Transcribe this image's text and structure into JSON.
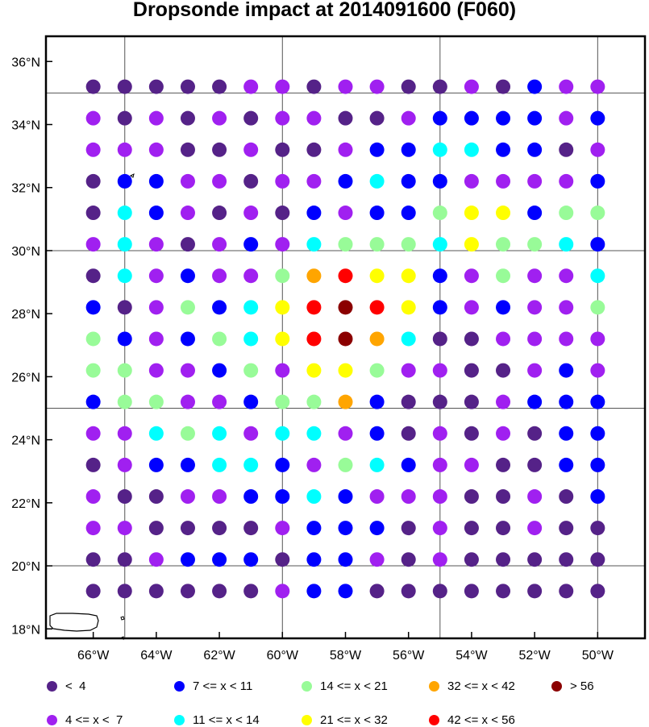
{
  "title": "Dropsonde impact at 2014091600 (F060)",
  "chart_data": {
    "type": "scatter",
    "title": "Dropsonde impact at 2014091600 (F060)",
    "xlim_lon": [
      -67.5,
      -48.5
    ],
    "ylim_lat": [
      17.7,
      36.8
    ],
    "lons": [
      -66,
      -65,
      -64,
      -63,
      -62,
      -61,
      -60,
      -59,
      -58,
      -57,
      -56,
      -55,
      -54,
      -53,
      -52,
      -51,
      -50
    ],
    "lats": [
      35.2,
      34.2,
      33.2,
      32.2,
      31.2,
      30.2,
      29.2,
      28.2,
      27.2,
      26.2,
      25.2,
      24.2,
      23.2,
      22.2,
      21.2,
      20.2,
      19.2
    ],
    "grid_lons": [
      -65,
      -60,
      -55,
      -50
    ],
    "grid_lats": [
      35,
      30,
      25,
      20
    ],
    "x_ticks": [
      {
        "lon": -66,
        "label": "66°W"
      },
      {
        "lon": -64,
        "label": "64°W"
      },
      {
        "lon": -62,
        "label": "62°W"
      },
      {
        "lon": -60,
        "label": "60°W"
      },
      {
        "lon": -58,
        "label": "58°W"
      },
      {
        "lon": -56,
        "label": "56°W"
      },
      {
        "lon": -54,
        "label": "54°W"
      },
      {
        "lon": -52,
        "label": "52°W"
      },
      {
        "lon": -50,
        "label": "50°W"
      }
    ],
    "y_ticks": [
      {
        "lat": 36,
        "label": "36°N"
      },
      {
        "lat": 34,
        "label": "34°N"
      },
      {
        "lat": 32,
        "label": "32°N"
      },
      {
        "lat": 30,
        "label": "30°N"
      },
      {
        "lat": 28,
        "label": "28°N"
      },
      {
        "lat": 26,
        "label": "26°N"
      },
      {
        "lat": 24,
        "label": "24°N"
      },
      {
        "lat": 22,
        "label": "22°N"
      },
      {
        "lat": 20,
        "label": "20°N"
      },
      {
        "lat": 18,
        "label": "18°N"
      }
    ],
    "categories": [
      {
        "id": 0,
        "label": "<  4",
        "color": "#552288"
      },
      {
        "id": 1,
        "label": "4 <= x <  7",
        "color": "#A020F0"
      },
      {
        "id": 2,
        "label": "7 <= x < 11",
        "color": "#0000FF"
      },
      {
        "id": 3,
        "label": "11 <= x < 14",
        "color": "#00FFFF"
      },
      {
        "id": 4,
        "label": "14 <= x < 21",
        "color": "#98FB98"
      },
      {
        "id": 5,
        "label": "21 <= x < 32",
        "color": "#FFFF00"
      },
      {
        "id": 6,
        "label": "32 <= x < 42",
        "color": "#FFA500"
      },
      {
        "id": 7,
        "label": "42 <= x < 56",
        "color": "#FF0000"
      },
      {
        "id": 8,
        "label": "> 56",
        "color": "#8B0000"
      }
    ],
    "grid_categories": [
      [
        0,
        0,
        0,
        0,
        0,
        1,
        1,
        0,
        1,
        1,
        0,
        0,
        1,
        0,
        2,
        1,
        1
      ],
      [
        1,
        0,
        1,
        0,
        1,
        0,
        1,
        1,
        0,
        0,
        1,
        2,
        2,
        2,
        2,
        1,
        2
      ],
      [
        1,
        1,
        1,
        0,
        0,
        1,
        0,
        0,
        1,
        2,
        2,
        3,
        3,
        2,
        2,
        0,
        1
      ],
      [
        0,
        2,
        2,
        1,
        1,
        0,
        1,
        1,
        2,
        3,
        2,
        2,
        1,
        1,
        1,
        1,
        2
      ],
      [
        0,
        3,
        2,
        1,
        0,
        1,
        0,
        2,
        1,
        2,
        2,
        4,
        5,
        5,
        2,
        4,
        4
      ],
      [
        1,
        3,
        1,
        0,
        1,
        2,
        1,
        3,
        4,
        4,
        4,
        3,
        5,
        4,
        4,
        3,
        2
      ],
      [
        0,
        3,
        1,
        2,
        1,
        1,
        4,
        6,
        7,
        5,
        5,
        2,
        1,
        4,
        1,
        1,
        3
      ],
      [
        2,
        0,
        1,
        4,
        2,
        3,
        5,
        7,
        8,
        7,
        5,
        2,
        1,
        2,
        1,
        1,
        4
      ],
      [
        4,
        2,
        1,
        2,
        4,
        3,
        5,
        7,
        8,
        6,
        3,
        0,
        0,
        1,
        1,
        1,
        1
      ],
      [
        4,
        4,
        1,
        1,
        2,
        4,
        1,
        5,
        5,
        4,
        1,
        1,
        0,
        0,
        1,
        2,
        1
      ],
      [
        2,
        4,
        4,
        1,
        1,
        2,
        4,
        4,
        6,
        2,
        0,
        0,
        0,
        1,
        2,
        2,
        2
      ],
      [
        1,
        1,
        3,
        4,
        3,
        1,
        3,
        3,
        1,
        2,
        0,
        1,
        0,
        1,
        0,
        2,
        2
      ],
      [
        0,
        1,
        2,
        2,
        3,
        3,
        2,
        1,
        4,
        3,
        2,
        1,
        1,
        0,
        0,
        2,
        2
      ],
      [
        1,
        0,
        0,
        1,
        1,
        2,
        2,
        3,
        2,
        1,
        1,
        1,
        0,
        0,
        1,
        0,
        2
      ],
      [
        1,
        1,
        0,
        0,
        0,
        0,
        1,
        2,
        2,
        2,
        0,
        1,
        0,
        0,
        1,
        0,
        0
      ],
      [
        0,
        0,
        1,
        2,
        2,
        2,
        0,
        2,
        2,
        1,
        0,
        1,
        0,
        0,
        0,
        0,
        0
      ],
      [
        0,
        0,
        0,
        0,
        0,
        0,
        1,
        2,
        2,
        0,
        0,
        0,
        0,
        0,
        0,
        0,
        0
      ]
    ]
  },
  "legend": [
    {
      "label": "<  4",
      "color": "#552288"
    },
    {
      "label": "7 <= x < 11",
      "color": "#0000FF"
    },
    {
      "label": "14 <= x < 21",
      "color": "#98FB98"
    },
    {
      "label": "32 <= x < 42",
      "color": "#FFA500"
    },
    {
      "label": "> 56",
      "color": "#8B0000"
    },
    {
      "label": "4 <= x <  7",
      "color": "#A020F0"
    },
    {
      "label": "11 <= x < 14",
      "color": "#00FFFF"
    },
    {
      "label": "21 <= x < 32",
      "color": "#FFFF00"
    },
    {
      "label": "42 <= x < 56",
      "color": "#FF0000"
    }
  ]
}
